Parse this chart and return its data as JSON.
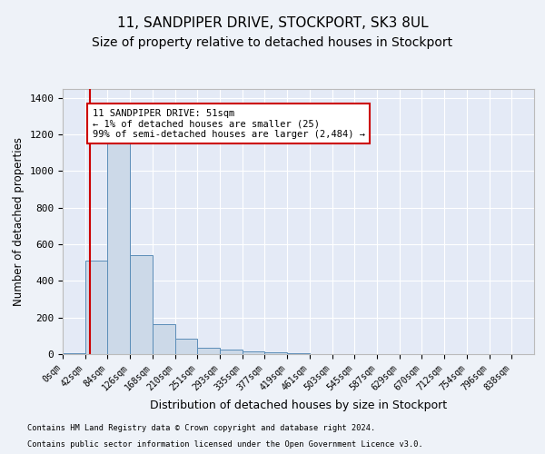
{
  "title1": "11, SANDPIPER DRIVE, STOCKPORT, SK3 8UL",
  "title2": "Size of property relative to detached houses in Stockport",
  "xlabel": "Distribution of detached houses by size in Stockport",
  "ylabel": "Number of detached properties",
  "bar_labels": [
    "0sqm",
    "42sqm",
    "84sqm",
    "126sqm",
    "168sqm",
    "210sqm",
    "251sqm",
    "293sqm",
    "335sqm",
    "377sqm",
    "419sqm",
    "461sqm",
    "503sqm",
    "545sqm",
    "587sqm",
    "629sqm",
    "670sqm",
    "712sqm",
    "754sqm",
    "796sqm",
    "838sqm"
  ],
  "bar_values": [
    5,
    510,
    1190,
    540,
    165,
    85,
    35,
    25,
    15,
    8,
    5,
    2,
    1,
    0,
    0,
    0,
    0,
    0,
    0,
    0,
    0
  ],
  "bar_color": "#ccd9e8",
  "bar_edge_color": "#5b8db8",
  "vline_x": 1.22,
  "vline_color": "#cc0000",
  "annotation_text": "11 SANDPIPER DRIVE: 51sqm\n← 1% of detached houses are smaller (25)\n99% of semi-detached houses are larger (2,484) →",
  "annotation_box_color": "#ffffff",
  "annotation_box_edge": "#cc0000",
  "ylim": [
    0,
    1450
  ],
  "yticks": [
    0,
    200,
    400,
    600,
    800,
    1000,
    1200,
    1400
  ],
  "footer1": "Contains HM Land Registry data © Crown copyright and database right 2024.",
  "footer2": "Contains public sector information licensed under the Open Government Licence v3.0.",
  "bg_color": "#eef2f8",
  "plot_bg_color": "#e4eaf6",
  "grid_color": "#ffffff",
  "title_fontsize": 11,
  "subtitle_fontsize": 10
}
